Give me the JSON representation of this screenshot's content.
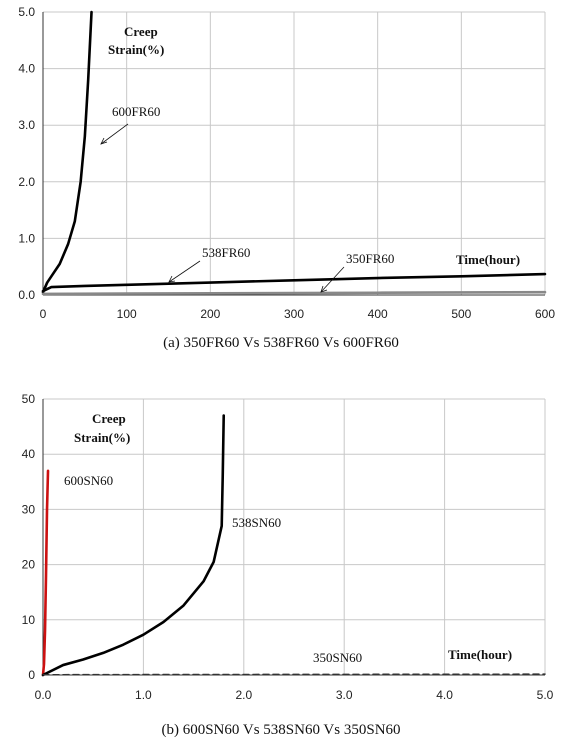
{
  "chart_data": [
    {
      "type": "line",
      "caption": "(a) 350FR60 Vs 538FR60 Vs 600FR60",
      "ylabel_line1": "Creep",
      "ylabel_line2": "Strain(%)",
      "xlabel": "Time(hour)",
      "xlim": [
        0,
        600
      ],
      "ylim": [
        0,
        5
      ],
      "xticks": [
        0,
        100,
        200,
        300,
        400,
        500,
        600
      ],
      "xtick_labels": [
        "0",
        "100",
        "200",
        "300",
        "400",
        "500",
        "600"
      ],
      "yticks": [
        0,
        1,
        2,
        3,
        4,
        5
      ],
      "ytick_labels": [
        "0.0",
        "1.0",
        "2.0",
        "3.0",
        "4.0",
        "5.0"
      ],
      "grid": true,
      "series": [
        {
          "name": "600FR60",
          "color": "#000000",
          "x": [
            0,
            5,
            10,
            20,
            30,
            38,
            45,
            50,
            54,
            57,
            58
          ],
          "y": [
            0.05,
            0.22,
            0.33,
            0.55,
            0.9,
            1.3,
            2.0,
            2.8,
            3.8,
            4.7,
            5.0
          ]
        },
        {
          "name": "538FR60",
          "color": "#000000",
          "x": [
            0,
            10,
            50,
            100,
            200,
            300,
            400,
            500,
            600
          ],
          "y": [
            0.07,
            0.14,
            0.16,
            0.18,
            0.22,
            0.26,
            0.3,
            0.33,
            0.37
          ]
        },
        {
          "name": "350FR60",
          "color": "#888888",
          "x": [
            0,
            100,
            200,
            300,
            400,
            500,
            600
          ],
          "y": [
            0.02,
            0.025,
            0.03,
            0.035,
            0.04,
            0.045,
            0.05
          ]
        }
      ],
      "series_labels": [
        "600FR60",
        "538FR60",
        "350FR60"
      ]
    },
    {
      "type": "line",
      "caption": "(b) 600SN60 Vs 538SN60 Vs 350SN60",
      "ylabel_line1": "Creep",
      "ylabel_line2": "Strain(%)",
      "xlabel": "Time(hour)",
      "xlim": [
        0,
        5
      ],
      "ylim": [
        0,
        50
      ],
      "xticks": [
        0,
        1,
        2,
        3,
        4,
        5
      ],
      "xtick_labels": [
        "0.0",
        "1.0",
        "2.0",
        "3.0",
        "4.0",
        "5.0"
      ],
      "yticks": [
        0,
        10,
        20,
        30,
        40,
        50
      ],
      "ytick_labels": [
        "0",
        "10",
        "20",
        "30",
        "40",
        "50"
      ],
      "grid": true,
      "series": [
        {
          "name": "600SN60",
          "color": "#cc1111",
          "x": [
            0.0,
            0.01,
            0.02,
            0.03,
            0.04,
            0.05
          ],
          "y": [
            0,
            2,
            8,
            18,
            30,
            37
          ]
        },
        {
          "name": "538SN60",
          "color": "#000000",
          "x": [
            0,
            0.2,
            0.4,
            0.6,
            0.8,
            1.0,
            1.2,
            1.4,
            1.6,
            1.7,
            1.78,
            1.79,
            1.8
          ],
          "y": [
            0,
            1.8,
            2.8,
            4.0,
            5.5,
            7.3,
            9.6,
            12.6,
            17.0,
            20.5,
            27,
            36,
            47
          ]
        },
        {
          "name": "350SN60",
          "color": "#333333",
          "dashed": true,
          "x": [
            0,
            1,
            2,
            3,
            4,
            5
          ],
          "y": [
            0.05,
            0.08,
            0.1,
            0.12,
            0.14,
            0.15
          ]
        }
      ],
      "series_labels": [
        "600SN60",
        "538SN60",
        "350SN60"
      ]
    }
  ]
}
